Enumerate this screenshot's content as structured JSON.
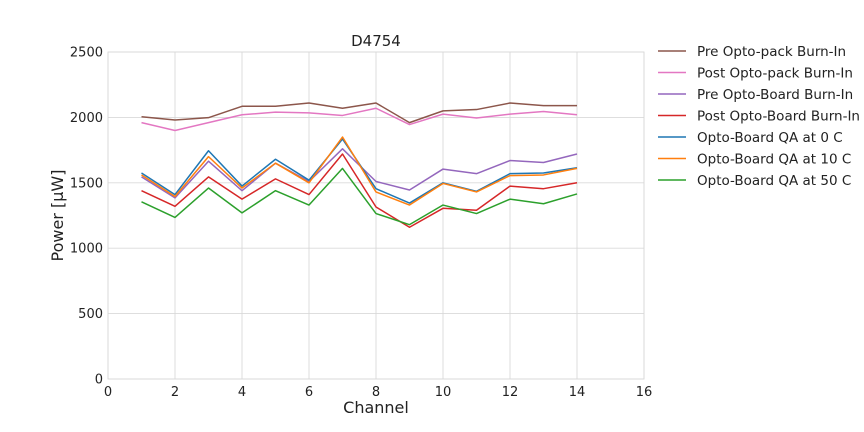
{
  "chart_data": {
    "type": "line",
    "title": "D4754",
    "xlabel": "Channel",
    "ylabel": "Power [μW]",
    "xlim": [
      0,
      16
    ],
    "ylim": [
      0,
      2500
    ],
    "xticks": [
      0,
      2,
      4,
      6,
      8,
      10,
      12,
      14,
      16
    ],
    "yticks": [
      0,
      500,
      1000,
      1500,
      2000,
      2500
    ],
    "grid": true,
    "legend_position": "outside-right",
    "x": [
      1,
      2,
      3,
      4,
      5,
      6,
      7,
      8,
      9,
      10,
      11,
      12,
      13,
      14
    ],
    "series": [
      {
        "name": "Pre Opto-pack Burn-In",
        "color": "#8c564b",
        "values": [
          2005,
          1980,
          1998,
          2085,
          2085,
          2110,
          2070,
          2110,
          1960,
          2050,
          2060,
          2110,
          2090,
          2090
        ]
      },
      {
        "name": "Post Opto-pack Burn-In",
        "color": "#e377c2",
        "values": [
          1960,
          1900,
          1960,
          2020,
          2040,
          2035,
          2015,
          2070,
          1945,
          2025,
          1995,
          2025,
          2045,
          2020
        ]
      },
      {
        "name": "Pre Opto-Board Burn-In",
        "color": "#9467bd",
        "values": [
          1545,
          1385,
          1665,
          1440,
          1650,
          1510,
          1760,
          1510,
          1445,
          1605,
          1570,
          1670,
          1655,
          1720
        ]
      },
      {
        "name": "Post Opto-Board Burn-In",
        "color": "#d62728",
        "values": [
          1440,
          1320,
          1545,
          1375,
          1530,
          1410,
          1720,
          1315,
          1160,
          1305,
          1290,
          1475,
          1455,
          1500
        ]
      },
      {
        "name": "Opto-Board QA at 0 C",
        "color": "#1f77b4",
        "values": [
          1575,
          1410,
          1745,
          1475,
          1680,
          1520,
          1835,
          1455,
          1345,
          1500,
          1435,
          1570,
          1575,
          1615
        ]
      },
      {
        "name": "Opto-Board QA at 10 C",
        "color": "#ff7f0e",
        "values": [
          1560,
          1395,
          1700,
          1460,
          1650,
          1500,
          1850,
          1430,
          1330,
          1495,
          1430,
          1555,
          1560,
          1610
        ]
      },
      {
        "name": "Opto-Board QA at 50 C",
        "color": "#2ca02c",
        "values": [
          1355,
          1235,
          1460,
          1270,
          1440,
          1330,
          1610,
          1265,
          1180,
          1330,
          1265,
          1375,
          1340,
          1415
        ]
      }
    ]
  }
}
